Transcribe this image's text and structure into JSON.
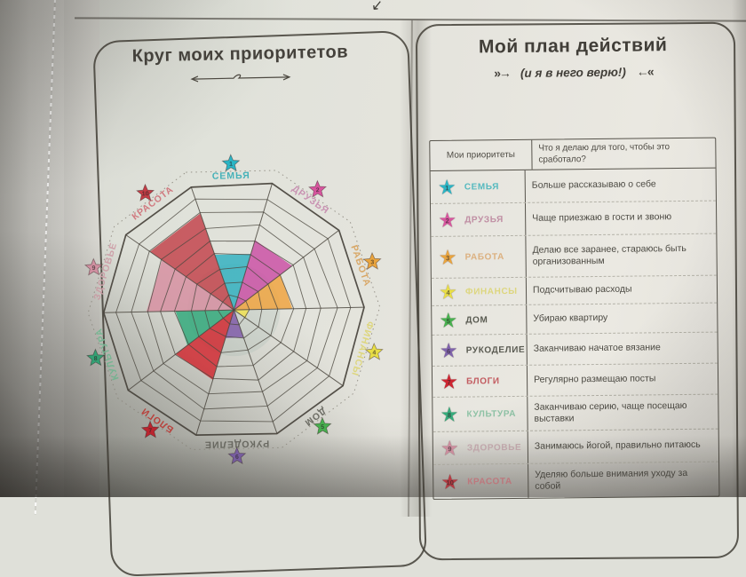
{
  "page_header": {
    "cut_arrow_icon": "↙"
  },
  "left_page": {
    "title": "Круг моих приоритетов"
  },
  "right_page": {
    "title": "Мой план действий",
    "subtitle": "(и я в него верю!)",
    "arrow_left": "»→",
    "arrow_right": "←«",
    "table": {
      "col1_header": "Мои приоритеты",
      "col2_header": "Что я делаю для того, чтобы это сработало?",
      "rows": [
        {
          "num": 1,
          "label": "СЕМЬЯ",
          "action": "Больше рассказываю о себе",
          "star_color": "#2ab5c5",
          "label_color": "#55b9bf"
        },
        {
          "num": 2,
          "label": "ДРУЗЬЯ",
          "action": "Чаще приезжаю в гости и звоню",
          "star_color": "#d8559f",
          "label_color": "#c08fa4"
        },
        {
          "num": 3,
          "label": "РАБОТА",
          "action": "Делаю все заранее, стараюсь быть организованным",
          "star_color": "#eaa53e",
          "label_color": "#dcb181"
        },
        {
          "num": 4,
          "label": "ФИНАНСЫ",
          "action": "Подсчитываю расходы",
          "star_color": "#e8de45",
          "label_color": "#ddd67e"
        },
        {
          "num": 5,
          "label": "ДОМ",
          "action": "Убираю квартиру",
          "star_color": "#47b24f",
          "label_color": "#5a5b52"
        },
        {
          "num": 6,
          "label": "РУКОДЕЛИЕ",
          "action": "Заканчиваю начатое вязание",
          "star_color": "#7f63ac",
          "label_color": "#5a5b52"
        },
        {
          "num": 7,
          "label": "БЛОГИ",
          "action": "Регулярно размещаю посты",
          "star_color": "#cd2531",
          "label_color": "#c25b60"
        },
        {
          "num": 8,
          "label": "КУЛЬТУРА",
          "action": "Заканчиваю серию, чаще посещаю выставки",
          "star_color": "#35ac7c",
          "label_color": "#8fc3a6"
        },
        {
          "num": 9,
          "label": "ЗДОРОВЬЕ",
          "action": "Занимаюсь йогой, правильно питаюсь",
          "star_color": "#d593a5",
          "label_color": "#c8adb2"
        },
        {
          "num": 10,
          "label": "КРАСОТА",
          "action": "Уделяю больше внимания уходу за собой",
          "star_color": "#c53d46",
          "label_color": "#cd8187"
        }
      ]
    }
  },
  "chart_data": {
    "type": "radar",
    "title": "Круг моих приоритетов",
    "order": "clockwise-from-top",
    "categories": [
      "СЕМЬЯ",
      "ДРУЗЬЯ",
      "РАБОТА",
      "ФИНАНСЫ",
      "ДОМ",
      "РУКОДЕЛИЕ",
      "БЛОГИ",
      "КУЛЬТУРА",
      "ЗДОРОВЬЕ",
      "КРАСОТА"
    ],
    "values": [
      4,
      5,
      4,
      1,
      0,
      2,
      5,
      4,
      6,
      7
    ],
    "max": 9,
    "rings": 9,
    "fill_colors": [
      "#2eb0bf",
      "#cb4da4",
      "#f0a23c",
      "#f2e34e",
      "none",
      "#7e58a8",
      "#d2262e",
      "#2ea87a",
      "#d78da0",
      "#c23f48"
    ],
    "label_colors": [
      "#45b1b8",
      "#c892b2",
      "#d8a766",
      "#ddd67e",
      "#6e6e66",
      "#6e6e66",
      "#c8443f",
      "#7cc09b",
      "#cfa3ab",
      "#d07a80"
    ],
    "star_colors": [
      "#2ab5c5",
      "#d8559f",
      "#eaa53e",
      "#e8de45",
      "#47b24f",
      "#7f63ac",
      "#cd2531",
      "#35ac7c",
      "#d593a5",
      "#c53d46"
    ],
    "star_numbers": [
      1,
      2,
      3,
      4,
      5,
      6,
      7,
      8,
      9,
      10
    ],
    "legend_position": "around-wheel",
    "grid": true
  }
}
